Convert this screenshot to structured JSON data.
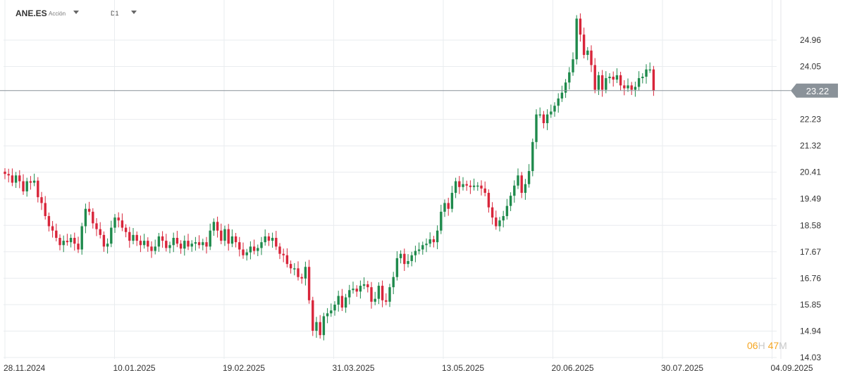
{
  "toolbar": {
    "symbol": "ANE.ES",
    "asset_type": "Acción",
    "timeframe": "D1"
  },
  "countdown": {
    "hours": "06",
    "hours_unit": "H",
    "minutes": "47",
    "minutes_unit": "M"
  },
  "colors": {
    "up": "#1f8a4c",
    "down": "#d8253a",
    "grid": "#e9ecef",
    "price_line": "#8a9299",
    "price_tag": "#8a9299",
    "axis_text": "#333333"
  },
  "chart_data": {
    "type": "candlestick",
    "title": "",
    "xlabel": "",
    "ylabel": "",
    "ylim": [
      14.03,
      25.87
    ],
    "y_ticks": [
      "24.96",
      "24.05",
      "23.22",
      "22.23",
      "21.32",
      "20.41",
      "19.49",
      "18.58",
      "17.67",
      "16.76",
      "15.85",
      "14.94",
      "14.03"
    ],
    "x_ticks": [
      "28.11.2024",
      "10.01.2025",
      "19.02.2025",
      "31.03.2025",
      "13.05.2025",
      "20.06.2025",
      "30.07.2025",
      "04.09.2025"
    ],
    "current_price": 23.22,
    "grid": true,
    "closes": [
      20.35,
      20.3,
      20.05,
      20.3,
      20.1,
      19.75,
      20.1,
      20.05,
      20.12,
      19.55,
      19.35,
      18.9,
      18.55,
      18.4,
      18.15,
      17.9,
      18.05,
      18.0,
      18.15,
      17.95,
      17.75,
      18.55,
      19.15,
      19.05,
      18.65,
      18.45,
      18.25,
      17.85,
      17.95,
      18.5,
      18.85,
      18.75,
      18.5,
      18.35,
      18.05,
      18.25,
      18.05,
      17.9,
      18.05,
      17.85,
      17.7,
      17.85,
      18.2,
      18.05,
      17.8,
      17.9,
      18.15,
      17.95,
      17.78,
      18.05,
      17.85,
      17.95,
      18.0,
      17.9,
      18.0,
      17.85,
      18.4,
      18.7,
      18.4,
      18.05,
      18.45,
      17.95,
      18.2,
      18.0,
      17.75,
      17.55,
      17.65,
      17.85,
      17.7,
      17.8,
      18.0,
      18.2,
      18.05,
      18.15,
      17.85,
      17.6,
      17.55,
      17.25,
      17.1,
      17.1,
      16.8,
      16.75,
      17.15,
      16.0,
      14.95,
      15.25,
      14.8,
      15.45,
      15.55,
      15.65,
      15.85,
      16.15,
      15.75,
      16.1,
      16.35,
      16.4,
      16.3,
      16.5,
      16.55,
      16.45,
      15.95,
      16.05,
      16.5,
      16.0,
      15.95,
      16.45,
      16.8,
      17.45,
      17.6,
      17.25,
      17.35,
      17.55,
      17.7,
      17.75,
      17.9,
      17.95,
      18.1,
      18.0,
      18.4,
      19.05,
      19.35,
      19.15,
      19.7,
      20.1,
      19.9,
      20.0,
      19.95,
      19.9,
      19.95,
      19.95,
      19.85,
      19.7,
      19.2,
      18.85,
      18.55,
      18.75,
      18.9,
      19.25,
      19.6,
      19.95,
      20.3,
      19.7,
      20.0,
      20.45,
      21.45,
      22.4,
      22.4,
      22.1,
      22.4,
      22.5,
      22.7,
      22.95,
      23.15,
      23.5,
      23.85,
      24.3,
      25.7,
      25.15,
      24.45,
      24.6,
      24.1,
      23.25,
      23.75,
      23.25,
      23.65,
      23.7,
      23.6,
      23.75,
      23.4,
      23.3,
      23.4,
      23.25,
      23.35,
      23.65,
      23.7,
      23.95,
      23.95,
      23.22
    ]
  }
}
